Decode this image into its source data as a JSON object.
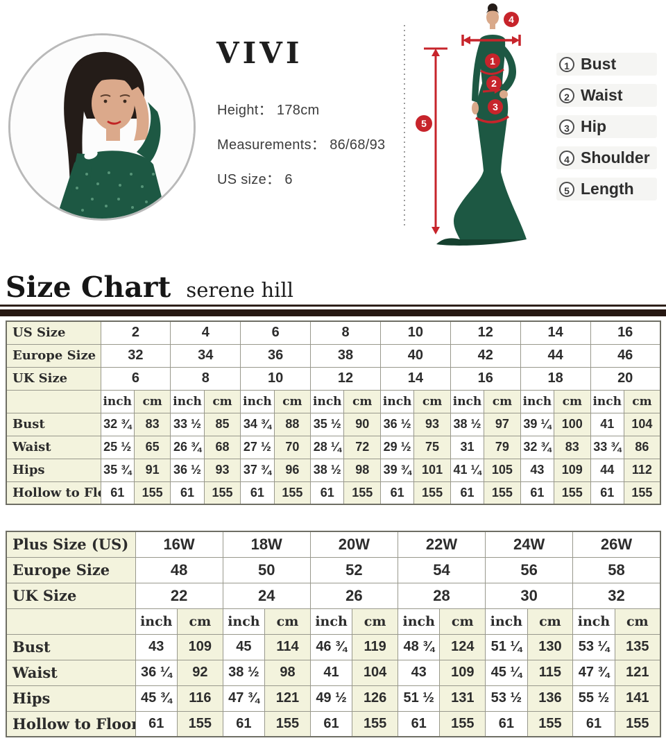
{
  "model": {
    "brand": "VIVI",
    "specs": [
      {
        "label": "Height：",
        "value": "178cm"
      },
      {
        "label": "Measurements：",
        "value": "86/68/93"
      },
      {
        "label": "US size：",
        "value": "6"
      }
    ]
  },
  "diagram": {
    "badges": [
      "1",
      "2",
      "3",
      "4",
      "5"
    ],
    "legend": [
      {
        "num": "1",
        "label": "Bust"
      },
      {
        "num": "2",
        "label": "Waist"
      },
      {
        "num": "3",
        "label": "Hip"
      },
      {
        "num": "4",
        "label": "Shoulder"
      },
      {
        "num": "5",
        "label": "Length"
      }
    ]
  },
  "heading": {
    "title": "Size Chart",
    "subtitle": "serene hill"
  },
  "tables": [
    {
      "name": "standard-sizes",
      "header_rows": [
        {
          "label": "US Size",
          "values": [
            "2",
            "4",
            "6",
            "8",
            "10",
            "12",
            "14",
            "16"
          ]
        },
        {
          "label": "Europe Size",
          "values": [
            "32",
            "34",
            "36",
            "38",
            "40",
            "42",
            "44",
            "46"
          ]
        },
        {
          "label": "UK Size",
          "values": [
            "6",
            "8",
            "10",
            "12",
            "14",
            "16",
            "18",
            "20"
          ]
        }
      ],
      "units": [
        "inch",
        "cm"
      ],
      "body_rows": [
        {
          "label": "Bust",
          "inch": [
            "32 ¾",
            "33 ½",
            "34 ¾",
            "35 ½",
            "36 ½",
            "38 ½",
            "39 ¼",
            "41"
          ],
          "cm": [
            "83",
            "85",
            "88",
            "90",
            "93",
            "97",
            "100",
            "104"
          ]
        },
        {
          "label": "Waist",
          "inch": [
            "25 ½",
            "26 ¾",
            "27 ½",
            "28 ¼",
            "29 ½",
            "31",
            "32 ¾",
            "33 ¾"
          ],
          "cm": [
            "65",
            "68",
            "70",
            "72",
            "75",
            "79",
            "83",
            "86"
          ]
        },
        {
          "label": "Hips",
          "inch": [
            "35 ¾",
            "36 ½",
            "37 ¾",
            "38 ½",
            "39 ¾",
            "41 ¼",
            "43",
            "44"
          ],
          "cm": [
            "91",
            "93",
            "96",
            "98",
            "101",
            "105",
            "109",
            "112"
          ]
        },
        {
          "label": "Hollow to Floor",
          "inch": [
            "61",
            "61",
            "61",
            "61",
            "61",
            "61",
            "61",
            "61"
          ],
          "cm": [
            "155",
            "155",
            "155",
            "155",
            "155",
            "155",
            "155",
            "155"
          ]
        }
      ]
    },
    {
      "name": "plus-sizes",
      "header_rows": [
        {
          "label": "Plus Size (US)",
          "values": [
            "16W",
            "18W",
            "20W",
            "22W",
            "24W",
            "26W"
          ]
        },
        {
          "label": "Europe Size",
          "values": [
            "48",
            "50",
            "52",
            "54",
            "56",
            "58"
          ]
        },
        {
          "label": "UK Size",
          "values": [
            "22",
            "24",
            "26",
            "28",
            "30",
            "32"
          ]
        }
      ],
      "units": [
        "inch",
        "cm"
      ],
      "body_rows": [
        {
          "label": "Bust",
          "inch": [
            "43",
            "45",
            "46 ¾",
            "48 ¾",
            "51 ¼",
            "53 ¼"
          ],
          "cm": [
            "109",
            "114",
            "119",
            "124",
            "130",
            "135"
          ]
        },
        {
          "label": "Waist",
          "inch": [
            "36 ¼",
            "38 ½",
            "41",
            "43",
            "45 ¼",
            "47 ¾"
          ],
          "cm": [
            "92",
            "98",
            "104",
            "109",
            "115",
            "121"
          ]
        },
        {
          "label": "Hips",
          "inch": [
            "45 ¾",
            "47 ¾",
            "49 ½",
            "51 ½",
            "53 ½",
            "55 ½"
          ],
          "cm": [
            "116",
            "121",
            "126",
            "131",
            "136",
            "141"
          ]
        },
        {
          "label": "Hollow to Floor",
          "inch": [
            "61",
            "61",
            "61",
            "61",
            "61",
            "61"
          ],
          "cm": [
            "155",
            "155",
            "155",
            "155",
            "155",
            "155"
          ]
        }
      ]
    }
  ],
  "colors": {
    "accent_red": "#c7242b",
    "cream": "#f3f3dd",
    "bar_brown": "#271812",
    "dress_green": "#1d5843"
  }
}
